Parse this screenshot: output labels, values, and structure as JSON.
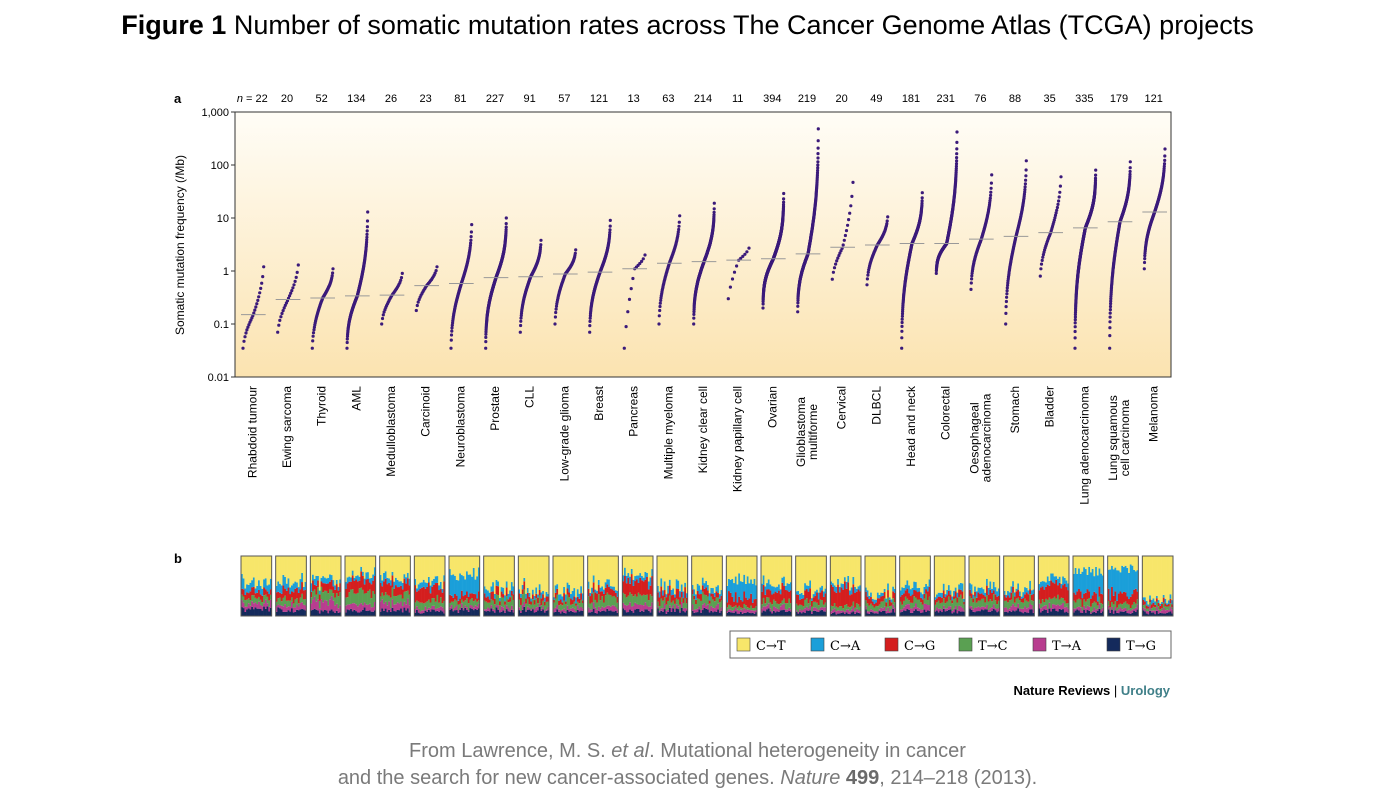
{
  "figure": {
    "label": "Figure 1",
    "title": "Number of somatic mutation rates across The Cancer Genome Atlas (TCGA) projects"
  },
  "panels": {
    "a": "a",
    "b": "b"
  },
  "credit": {
    "brand": "Nature Reviews",
    "separator": " | ",
    "journal": "Urology"
  },
  "caption": {
    "line1_before": "From Lawrence, M. S. ",
    "line1_italic": "et al",
    "line1_after": ". Mutational heterogeneity in cancer",
    "line2_before": "and the search for new cancer-associated genes. ",
    "line2_journal": "Nature",
    "line2_volume": "499",
    "line2_after": ", 214–218 (2013)."
  },
  "colors": {
    "C→T": "#f7e66a",
    "C→A": "#1b9fd9",
    "C→G": "#d41e1e",
    "T→C": "#5aa052",
    "T→A": "#b83d8f",
    "T→G": "#142a5c",
    "dots": "#3b1a7a",
    "median": "#999999",
    "bg_top": "#fffdf7",
    "bg_bottom": "#fbe3b0"
  },
  "chart_data": [
    {
      "type": "scatter",
      "panel": "a",
      "ylabel": "Somatic mutation frequency (/Mb)",
      "y_scale": "log",
      "ylim": [
        0.01,
        1000
      ],
      "yticks": [
        "0.01",
        "0.1",
        "1",
        "10",
        "100",
        "1,000"
      ],
      "n_prefix": "n = ",
      "categories": [
        {
          "name": "Rhabdoid tumour",
          "n": "22",
          "median": 0.15,
          "min": 0.035,
          "max": 1.2
        },
        {
          "name": "Ewing sarcoma",
          "n": "20",
          "median": 0.29,
          "min": 0.07,
          "max": 1.3
        },
        {
          "name": "Thyroid",
          "n": "52",
          "median": 0.31,
          "min": 0.035,
          "max": 1.1
        },
        {
          "name": "AML",
          "n": "134",
          "median": 0.34,
          "min": 0.035,
          "max": 13
        },
        {
          "name": "Medulloblastoma",
          "n": "26",
          "median": 0.35,
          "min": 0.1,
          "max": 0.9
        },
        {
          "name": "Carcinoid",
          "n": "23",
          "median": 0.53,
          "min": 0.18,
          "max": 1.2
        },
        {
          "name": "Neuroblastoma",
          "n": "81",
          "median": 0.58,
          "min": 0.035,
          "max": 7.5
        },
        {
          "name": "Prostate",
          "n": "227",
          "median": 0.75,
          "min": 0.035,
          "max": 10
        },
        {
          "name": "CLL",
          "n": "91",
          "median": 0.78,
          "min": 0.07,
          "max": 3.8
        },
        {
          "name": "Low-grade glioma",
          "n": "57",
          "median": 0.88,
          "min": 0.1,
          "max": 2.5
        },
        {
          "name": "Breast",
          "n": "121",
          "median": 0.95,
          "min": 0.07,
          "max": 9
        },
        {
          "name": "Pancreas",
          "n": "13",
          "median": 1.1,
          "min": 0.035,
          "max": 2
        },
        {
          "name": "Multiple myeloma",
          "n": "63",
          "median": 1.4,
          "min": 0.1,
          "max": 11
        },
        {
          "name": "Kidney clear cell",
          "n": "214",
          "median": 1.5,
          "min": 0.1,
          "max": 19
        },
        {
          "name": "Kidney papillary cell",
          "n": "11",
          "median": 1.6,
          "min": 0.3,
          "max": 2.7
        },
        {
          "name": "Ovarian",
          "n": "394",
          "median": 1.7,
          "min": 0.2,
          "max": 29
        },
        {
          "name": "Glioblastoma multiforme",
          "n": "219",
          "median": 2.1,
          "min": 0.17,
          "max": 480
        },
        {
          "name": "Cervical",
          "n": "20",
          "median": 2.8,
          "min": 0.7,
          "max": 47
        },
        {
          "name": "DLBCL",
          "n": "49",
          "median": 3.1,
          "min": 0.55,
          "max": 10.5
        },
        {
          "name": "Head and neck",
          "n": "181",
          "median": 3.3,
          "min": 0.035,
          "max": 30
        },
        {
          "name": "Colorectal",
          "n": "231",
          "median": 3.3,
          "min": 0.9,
          "max": 420
        },
        {
          "name": "Oesophageal adenocarcinoma",
          "n": "76",
          "median": 4,
          "min": 0.45,
          "max": 65
        },
        {
          "name": "Stomach",
          "n": "88",
          "median": 4.5,
          "min": 0.1,
          "max": 120
        },
        {
          "name": "Bladder",
          "n": "35",
          "median": 5.3,
          "min": 0.8,
          "max": 60
        },
        {
          "name": "Lung adenocarcinoma",
          "n": "335",
          "median": 6.5,
          "min": 0.035,
          "max": 80
        },
        {
          "name": "Lung squamous cell carcinoma",
          "n": "179",
          "median": 8.5,
          "min": 0.035,
          "max": 115
        },
        {
          "name": "Melanoma",
          "n": "121",
          "median": 13,
          "min": 1.1,
          "max": 200
        }
      ]
    },
    {
      "type": "area",
      "panel": "b",
      "ylabel": "",
      "legend_position": "bottom-right",
      "series": [
        {
          "name": "C→T"
        },
        {
          "name": "C→A"
        },
        {
          "name": "C→G"
        },
        {
          "name": "T→C"
        },
        {
          "name": "T→A"
        },
        {
          "name": "T→G"
        }
      ],
      "mean_fractions_by_category": [
        [
          0.45,
          0.15,
          0.1,
          0.1,
          0.08,
          0.12
        ],
        [
          0.45,
          0.12,
          0.15,
          0.1,
          0.08,
          0.1
        ],
        [
          0.4,
          0.1,
          0.12,
          0.15,
          0.15,
          0.08
        ],
        [
          0.3,
          0.1,
          0.2,
          0.2,
          0.1,
          0.1
        ],
        [
          0.35,
          0.1,
          0.18,
          0.15,
          0.12,
          0.1
        ],
        [
          0.4,
          0.1,
          0.25,
          0.12,
          0.05,
          0.08
        ],
        [
          0.3,
          0.35,
          0.1,
          0.1,
          0.05,
          0.1
        ],
        [
          0.55,
          0.1,
          0.1,
          0.12,
          0.05,
          0.08
        ],
        [
          0.55,
          0.08,
          0.1,
          0.12,
          0.05,
          0.1
        ],
        [
          0.6,
          0.1,
          0.08,
          0.1,
          0.05,
          0.07
        ],
        [
          0.5,
          0.08,
          0.12,
          0.15,
          0.07,
          0.08
        ],
        [
          0.3,
          0.1,
          0.25,
          0.15,
          0.1,
          0.1
        ],
        [
          0.55,
          0.1,
          0.12,
          0.1,
          0.05,
          0.08
        ],
        [
          0.5,
          0.1,
          0.1,
          0.15,
          0.07,
          0.08
        ],
        [
          0.4,
          0.3,
          0.15,
          0.05,
          0.05,
          0.05
        ],
        [
          0.45,
          0.12,
          0.18,
          0.1,
          0.07,
          0.08
        ],
        [
          0.55,
          0.08,
          0.15,
          0.1,
          0.05,
          0.07
        ],
        [
          0.45,
          0.08,
          0.3,
          0.07,
          0.05,
          0.05
        ],
        [
          0.6,
          0.08,
          0.1,
          0.1,
          0.05,
          0.07
        ],
        [
          0.5,
          0.1,
          0.12,
          0.12,
          0.08,
          0.08
        ],
        [
          0.6,
          0.08,
          0.08,
          0.12,
          0.05,
          0.07
        ],
        [
          0.55,
          0.1,
          0.1,
          0.12,
          0.05,
          0.08
        ],
        [
          0.55,
          0.08,
          0.1,
          0.12,
          0.07,
          0.08
        ],
        [
          0.4,
          0.1,
          0.25,
          0.1,
          0.07,
          0.08
        ],
        [
          0.25,
          0.4,
          0.12,
          0.1,
          0.05,
          0.08
        ],
        [
          0.2,
          0.45,
          0.15,
          0.08,
          0.05,
          0.07
        ],
        [
          0.75,
          0.05,
          0.05,
          0.05,
          0.05,
          0.05
        ]
      ]
    }
  ]
}
